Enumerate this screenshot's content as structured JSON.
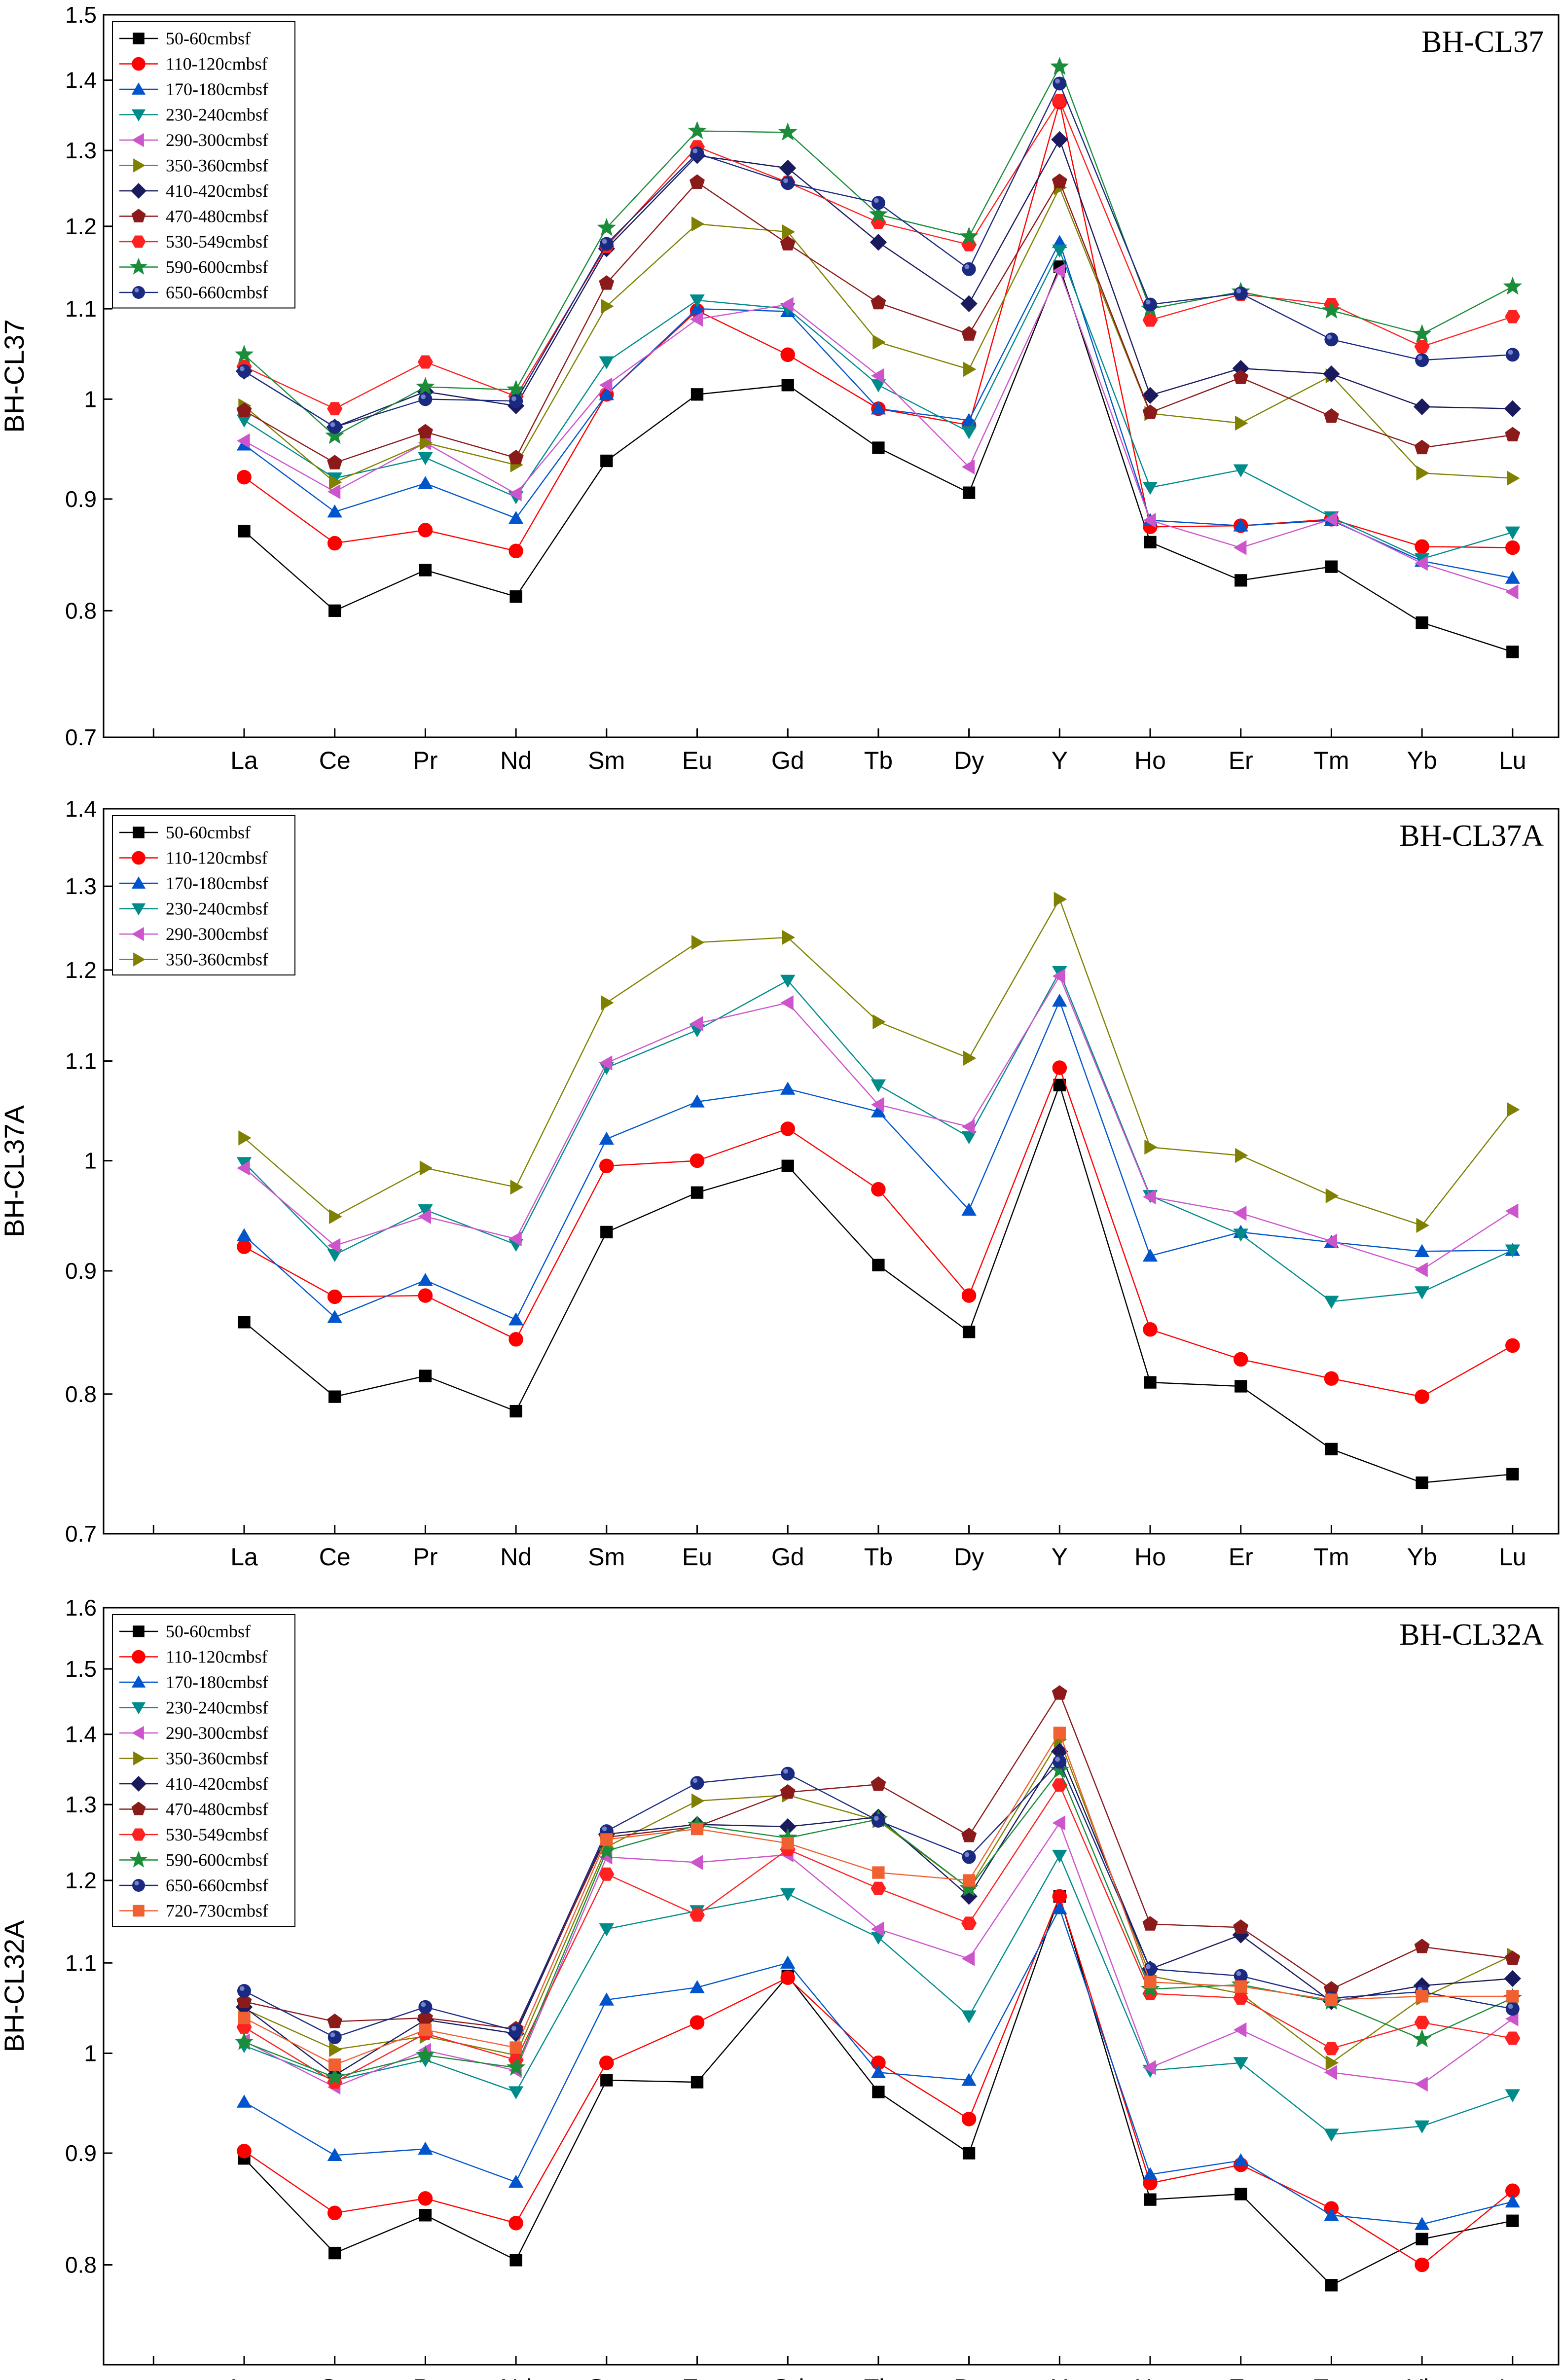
{
  "chart_data": [
    {
      "type": "line",
      "title": "BH-CL37",
      "ylabel": "BH-CL37",
      "xlabel": "",
      "categories": [
        "La",
        "Ce",
        "Pr",
        "Nd",
        "Sm",
        "Eu",
        "Gd",
        "Tb",
        "Dy",
        "Y",
        "Ho",
        "Er",
        "Tm",
        "Yb",
        "Lu"
      ],
      "yscale": "log",
      "ylim": [
        0.7,
        1.5
      ],
      "yticks": [
        "0.7",
        "0.8",
        "0.9",
        "1",
        "1.1",
        "1.2",
        "1.3",
        "1.4",
        "1.5"
      ],
      "legend_position": "top-left",
      "series": [
        {
          "name": "50-60cmbsf",
          "color": "#000000",
          "marker": "square",
          "values": [
            0.87,
            0.8,
            0.835,
            0.812,
            0.937,
            1.005,
            1.015,
            0.95,
            0.906,
            1.15,
            0.86,
            0.826,
            0.838,
            0.79,
            0.766
          ]
        },
        {
          "name": "110-120cmbsf",
          "color": "#ff0000",
          "marker": "circle",
          "values": [
            0.921,
            0.859,
            0.871,
            0.852,
            1.005,
            1.098,
            1.048,
            0.99,
            0.973,
            1.368,
            0.874,
            0.875,
            0.881,
            0.856,
            0.855
          ]
        },
        {
          "name": "170-180cmbsf",
          "color": "#0055cc",
          "marker": "triangle-up",
          "values": [
            0.953,
            0.888,
            0.915,
            0.882,
            1.005,
            1.1,
            1.097,
            0.99,
            0.978,
            1.18,
            0.88,
            0.875,
            0.88,
            0.843,
            0.828
          ]
        },
        {
          "name": "230-240cmbsf",
          "color": "#008b8b",
          "marker": "triangle-down",
          "values": [
            0.978,
            0.92,
            0.94,
            0.902,
            1.04,
            1.11,
            1.1,
            1.015,
            0.966,
            1.17,
            0.911,
            0.928,
            0.883,
            0.845,
            0.869
          ]
        },
        {
          "name": "290-300cmbsf",
          "color": "#cc55cc",
          "marker": "triangle-left",
          "values": [
            0.957,
            0.907,
            0.955,
            0.905,
            1.015,
            1.088,
            1.105,
            1.025,
            0.931,
            1.145,
            0.88,
            0.855,
            0.881,
            0.841,
            0.816
          ]
        },
        {
          "name": "350-360cmbsf",
          "color": "#808000",
          "marker": "triangle-right",
          "values": [
            0.993,
            0.916,
            0.955,
            0.933,
            1.103,
            1.203,
            1.193,
            1.062,
            1.032,
            1.25,
            0.985,
            0.975,
            1.025,
            0.925,
            0.92
          ]
        },
        {
          "name": "410-420cmbsf",
          "color": "#1a1a5e",
          "marker": "diamond",
          "values": [
            1.03,
            0.971,
            1.008,
            0.993,
            1.172,
            1.293,
            1.276,
            1.18,
            1.106,
            1.315,
            1.004,
            1.033,
            1.027,
            0.992,
            0.99
          ]
        },
        {
          "name": "470-480cmbsf",
          "color": "#8b1a1a",
          "marker": "pentagon",
          "values": [
            0.988,
            0.935,
            0.966,
            0.94,
            1.13,
            1.257,
            1.178,
            1.107,
            1.071,
            1.258,
            0.986,
            1.023,
            0.982,
            0.95,
            0.963
          ]
        },
        {
          "name": "530-549cmbsf",
          "color": "#ff2020",
          "marker": "hexagon",
          "values": [
            1.035,
            0.99,
            1.04,
            1.003,
            1.175,
            1.305,
            1.257,
            1.205,
            1.177,
            1.37,
            1.087,
            1.117,
            1.105,
            1.057,
            1.091
          ]
        },
        {
          "name": "590-600cmbsf",
          "color": "#1a8c3a",
          "marker": "star",
          "values": [
            1.048,
            0.962,
            1.013,
            1.01,
            1.198,
            1.327,
            1.325,
            1.215,
            1.187,
            1.42,
            1.1,
            1.12,
            1.098,
            1.071,
            1.126
          ]
        },
        {
          "name": "650-660cmbsf",
          "color": "#1a2a80",
          "marker": "sphere",
          "values": [
            1.03,
            0.971,
            1.0,
            0.998,
            1.178,
            1.296,
            1.256,
            1.23,
            1.147,
            1.395,
            1.105,
            1.118,
            1.065,
            1.042,
            1.048
          ]
        }
      ]
    },
    {
      "type": "line",
      "title": "BH-CL37A",
      "ylabel": "BH-CL37A",
      "xlabel": "",
      "categories": [
        "La",
        "Ce",
        "Pr",
        "Nd",
        "Sm",
        "Eu",
        "Gd",
        "Tb",
        "Dy",
        "Y",
        "Ho",
        "Er",
        "Tm",
        "Yb",
        "Lu"
      ],
      "yscale": "log",
      "ylim": [
        0.7,
        1.4
      ],
      "yticks": [
        "0.7",
        "0.8",
        "0.9",
        "1",
        "1.1",
        "1.2",
        "1.3",
        "1.4"
      ],
      "legend_position": "top-left",
      "series": [
        {
          "name": "50-60cmbsf",
          "color": "#000000",
          "marker": "square",
          "values": [
            0.857,
            0.798,
            0.814,
            0.787,
            0.934,
            0.97,
            0.995,
            0.905,
            0.849,
            1.075,
            0.809,
            0.806,
            0.759,
            0.735,
            0.741
          ]
        },
        {
          "name": "110-120cmbsf",
          "color": "#ff0000",
          "marker": "circle",
          "values": [
            0.921,
            0.878,
            0.879,
            0.843,
            0.995,
            1.0,
            1.031,
            0.973,
            0.879,
            1.093,
            0.851,
            0.827,
            0.812,
            0.798,
            0.838
          ]
        },
        {
          "name": "170-180cmbsf",
          "color": "#0055cc",
          "marker": "triangle-up",
          "values": [
            0.931,
            0.861,
            0.892,
            0.859,
            1.021,
            1.058,
            1.071,
            1.048,
            0.954,
            1.165,
            0.913,
            0.934,
            0.925,
            0.917,
            0.918
          ]
        },
        {
          "name": "230-240cmbsf",
          "color": "#008b8b",
          "marker": "triangle-down",
          "values": [
            0.998,
            0.914,
            0.954,
            0.923,
            1.093,
            1.133,
            1.188,
            1.075,
            1.023,
            1.198,
            0.967,
            0.932,
            0.874,
            0.882,
            0.918
          ]
        },
        {
          "name": "290-300cmbsf",
          "color": "#cc55cc",
          "marker": "triangle-left",
          "values": [
            0.993,
            0.922,
            0.948,
            0.928,
            1.098,
            1.14,
            1.163,
            1.055,
            1.033,
            1.193,
            0.966,
            0.951,
            0.926,
            0.901,
            0.953
          ]
        },
        {
          "name": "350-360cmbsf",
          "color": "#808000",
          "marker": "triangle-right",
          "values": [
            1.022,
            0.948,
            0.993,
            0.975,
            1.163,
            1.232,
            1.238,
            1.142,
            1.103,
            1.284,
            1.013,
            1.005,
            0.967,
            0.94,
            1.05
          ]
        }
      ]
    },
    {
      "type": "line",
      "title": "BH-CL32A",
      "ylabel": "BH-CL32A",
      "xlabel": "",
      "categories": [
        "La",
        "Ce",
        "Pr",
        "Nd",
        "Sm",
        "Eu",
        "Gd",
        "Tb",
        "Dy",
        "Y",
        "Ho",
        "Er",
        "Tm",
        "Yb",
        "Lu"
      ],
      "yscale": "log",
      "ylim": [
        0.72,
        1.6
      ],
      "yticks": [
        "0.8",
        "0.9",
        "1",
        "1.1",
        "1.2",
        "1.3",
        "1.4",
        "1.5",
        "1.6"
      ],
      "legend_position": "top-left",
      "series": [
        {
          "name": "50-60cmbsf",
          "color": "#000000",
          "marker": "square",
          "values": [
            0.895,
            0.81,
            0.843,
            0.804,
            0.972,
            0.97,
            1.085,
            0.96,
            0.9,
            1.18,
            0.857,
            0.862,
            0.783,
            0.822,
            0.838
          ]
        },
        {
          "name": "110-120cmbsf",
          "color": "#ff0000",
          "marker": "circle",
          "values": [
            0.902,
            0.845,
            0.858,
            0.836,
            0.99,
            1.033,
            1.083,
            0.99,
            0.933,
            1.18,
            0.872,
            0.889,
            0.849,
            0.8,
            0.865
          ]
        },
        {
          "name": "170-180cmbsf",
          "color": "#0055cc",
          "marker": "triangle-up",
          "values": [
            0.95,
            0.898,
            0.904,
            0.873,
            1.058,
            1.072,
            1.1,
            0.98,
            0.972,
            1.165,
            0.88,
            0.893,
            0.843,
            0.835,
            0.855
          ]
        },
        {
          "name": "230-240cmbsf",
          "color": "#008b8b",
          "marker": "triangle-down",
          "values": [
            1.008,
            0.972,
            0.993,
            0.96,
            1.14,
            1.162,
            1.183,
            1.13,
            1.04,
            1.232,
            0.982,
            0.99,
            0.918,
            0.926,
            0.957
          ]
        },
        {
          "name": "290-300cmbsf",
          "color": "#cc55cc",
          "marker": "triangle-left",
          "values": [
            1.013,
            0.965,
            1.003,
            0.982,
            1.23,
            1.223,
            1.233,
            1.14,
            1.105,
            1.275,
            0.985,
            1.025,
            0.98,
            0.968,
            1.037
          ]
        },
        {
          "name": "350-360cmbsf",
          "color": "#808000",
          "marker": "triangle-right",
          "values": [
            1.048,
            1.004,
            1.018,
            0.998,
            1.243,
            1.305,
            1.313,
            1.278,
            1.19,
            1.392,
            1.085,
            1.065,
            0.99,
            1.06,
            1.109
          ]
        },
        {
          "name": "410-420cmbsf",
          "color": "#1a1a5e",
          "marker": "diamond",
          "values": [
            1.05,
            0.977,
            1.036,
            1.021,
            1.26,
            1.273,
            1.27,
            1.283,
            1.18,
            1.375,
            1.093,
            1.133,
            1.056,
            1.074,
            1.082
          ]
        },
        {
          "name": "470-480cmbsf",
          "color": "#8b1a1a",
          "marker": "pentagon",
          "values": [
            1.056,
            1.034,
            1.038,
            1.026,
            1.256,
            1.27,
            1.317,
            1.328,
            1.258,
            1.462,
            1.146,
            1.142,
            1.07,
            1.119,
            1.105
          ]
        },
        {
          "name": "530-549cmbsf",
          "color": "#ff2020",
          "marker": "hexagon",
          "values": [
            1.028,
            0.97,
            1.021,
            0.993,
            1.208,
            1.157,
            1.24,
            1.19,
            1.147,
            1.327,
            1.065,
            1.06,
            1.005,
            1.033,
            1.016
          ]
        },
        {
          "name": "590-600cmbsf",
          "color": "#1a8c3a",
          "marker": "star",
          "values": [
            1.012,
            0.975,
            0.998,
            0.985,
            1.238,
            1.272,
            1.255,
            1.28,
            1.19,
            1.348,
            1.07,
            1.075,
            1.056,
            1.015,
            1.06
          ]
        },
        {
          "name": "650-660cmbsf",
          "color": "#1a2a80",
          "marker": "sphere",
          "values": [
            1.068,
            1.017,
            1.05,
            1.024,
            1.264,
            1.33,
            1.343,
            1.278,
            1.23,
            1.36,
            1.093,
            1.085,
            1.06,
            1.067,
            1.048
          ]
        },
        {
          "name": "720-730cmbsf",
          "color": "#f06030",
          "marker": "square",
          "values": [
            1.038,
            0.988,
            1.025,
            1.006,
            1.253,
            1.267,
            1.248,
            1.21,
            1.2,
            1.402,
            1.078,
            1.073,
            1.058,
            1.062,
            1.062
          ]
        }
      ]
    }
  ]
}
